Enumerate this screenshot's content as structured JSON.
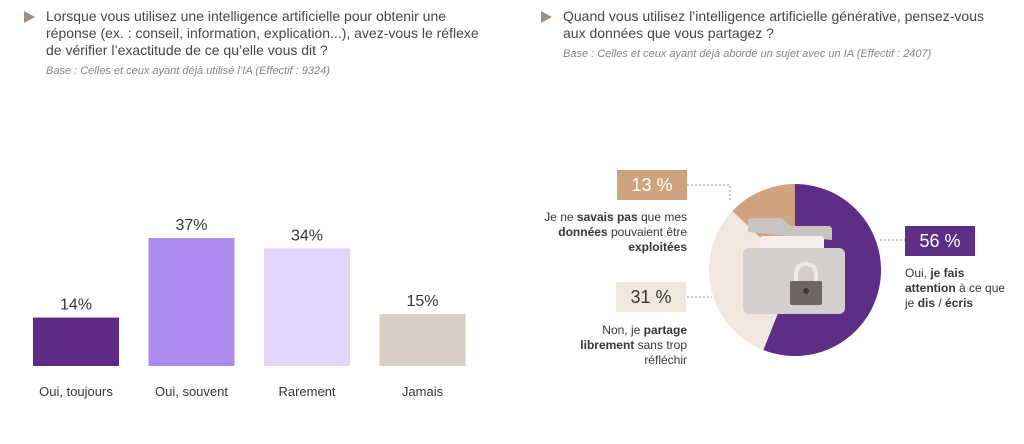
{
  "left": {
    "question": "Lorsque vous utilisez une intelligence artificielle pour obtenir une réponse (ex. : conseil, information, explication...), avez-vous le réflexe de vérifier l’exactitude de ce qu’elle vous dit  ?",
    "base": "Base : Celles et ceux ayant déjà utilisé l’IA (Effectif : 9324)"
  },
  "right": {
    "question": "Quand vous utilisez l’intelligence artificielle générative, pensez-vous aux données que vous partagez ?",
    "base": "Base : Celles et ceux ayant déjà abordé un sujet avec un IA (Effectif : 2407)"
  },
  "chart_data": [
    {
      "type": "bar",
      "categories": [
        "Oui, toujours",
        "Oui, souvent",
        "Rarement",
        "Jamais"
      ],
      "values": [
        14,
        37,
        34,
        15
      ],
      "data_labels": [
        "14%",
        "37%",
        "34%",
        "15%"
      ],
      "colors": [
        "#5f2b86",
        "#ad8bee",
        "#e2d5fb",
        "#d7cdc3"
      ],
      "ylim": [
        0,
        40
      ]
    },
    {
      "type": "pie",
      "slices": [
        {
          "value": 56,
          "label": "56 %",
          "color": "#5e2d86",
          "text": [
            {
              "t": "Oui, "
            },
            {
              "t": "je fais",
              "b": true
            },
            {
              "t": " "
            },
            {
              "t": "attention",
              "b": true
            },
            {
              "t": " à ce que je "
            },
            {
              "t": "dis",
              "b": true
            },
            {
              "t": " / "
            },
            {
              "t": "écris",
              "b": true
            }
          ]
        },
        {
          "value": 31,
          "label": "31 %",
          "color": "#f1e7dd",
          "text": [
            {
              "t": "Non, je "
            },
            {
              "t": "partage librement",
              "b": true
            },
            {
              "t": " sans trop réfléchir"
            }
          ]
        },
        {
          "value": 13,
          "label": "13 %",
          "color": "#cfa37d",
          "text": [
            {
              "t": "Je ne "
            },
            {
              "t": "savais pas",
              "b": true
            },
            {
              "t": " que mes "
            },
            {
              "t": "données",
              "b": true
            },
            {
              "t": " pouvaient être "
            },
            {
              "t": "exploitées",
              "b": true
            }
          ]
        }
      ],
      "center_icon": "locked-folder-icon"
    }
  ]
}
